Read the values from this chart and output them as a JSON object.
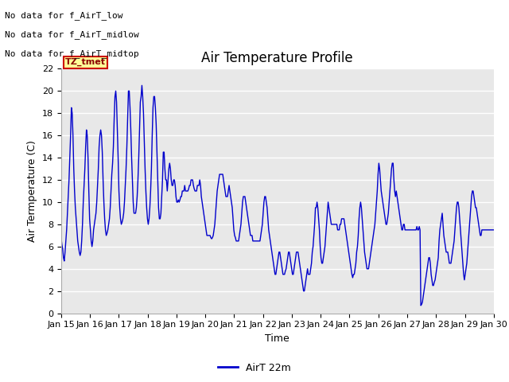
{
  "title": "Air Temperature Profile",
  "xlabel": "Time",
  "ylabel": "Air Termperature (C)",
  "ylim": [
    0,
    22
  ],
  "yticks": [
    0,
    2,
    4,
    6,
    8,
    10,
    12,
    14,
    16,
    18,
    20,
    22
  ],
  "xtick_labels": [
    "Jan 15",
    "Jan 16",
    "Jan 17",
    "Jan 18",
    "Jan 19",
    "Jan 20",
    "Jan 21",
    "Jan 22",
    "Jan 23",
    "Jan 24",
    "Jan 25",
    "Jan 26",
    "Jan 27",
    "Jan 28",
    "Jan 29",
    "Jan 30"
  ],
  "line_color": "#0000cc",
  "legend_label": "AirT 22m",
  "bg_color": "#ffffff",
  "plot_bg_color": "#e8e8e8",
  "grid_color": "#ffffff",
  "annotations": [
    "No data for f_AirT_low",
    "No data for f_AirT_midlow",
    "No data for f_AirT_midtop"
  ],
  "tz_label": "TZ_tmet",
  "title_fontsize": 12,
  "axis_fontsize": 9,
  "tick_fontsize": 8,
  "temp_data": [
    6.8,
    6.2,
    5.8,
    5.0,
    4.7,
    5.5,
    6.5,
    7.5,
    9.0,
    10.5,
    12.0,
    14.0,
    16.0,
    18.5,
    18.0,
    16.0,
    13.0,
    11.0,
    9.5,
    8.5,
    7.5,
    6.5,
    6.0,
    5.5,
    5.2,
    5.5,
    6.5,
    8.0,
    10.0,
    11.5,
    13.0,
    15.0,
    16.5,
    16.0,
    14.0,
    11.0,
    8.5,
    7.5,
    6.5,
    6.0,
    6.5,
    7.5,
    8.0,
    8.5,
    9.0,
    10.0,
    11.5,
    13.0,
    15.0,
    16.0,
    16.5,
    16.0,
    14.5,
    12.0,
    10.0,
    8.5,
    7.5,
    7.0,
    7.2,
    7.5,
    8.0,
    8.5,
    9.5,
    11.0,
    12.5,
    13.5,
    15.0,
    17.5,
    19.5,
    20.0,
    19.0,
    16.5,
    14.0,
    11.0,
    9.5,
    8.5,
    8.0,
    8.2,
    8.5,
    9.0,
    10.0,
    11.5,
    13.0,
    15.0,
    17.5,
    20.0,
    20.0,
    18.5,
    16.5,
    14.0,
    12.0,
    10.0,
    9.0,
    9.0,
    9.0,
    9.5,
    10.5,
    12.0,
    14.0,
    16.5,
    19.0,
    19.5,
    20.5,
    19.5,
    18.0,
    15.5,
    13.0,
    11.0,
    9.5,
    8.5,
    8.0,
    8.5,
    9.5,
    11.0,
    13.0,
    16.0,
    18.5,
    19.5,
    19.5,
    18.5,
    17.0,
    14.5,
    12.0,
    9.5,
    8.5,
    8.5,
    9.0,
    10.5,
    12.0,
    14.5,
    14.5,
    13.0,
    12.0,
    12.0,
    11.0,
    12.0,
    13.0,
    13.5,
    13.0,
    12.0,
    11.5,
    11.5,
    12.0,
    12.0,
    11.5,
    10.5,
    10.0,
    10.0,
    10.2,
    10.0,
    10.2,
    10.5,
    10.5,
    11.0,
    11.0,
    11.0,
    11.5,
    11.0,
    11.0,
    11.0,
    11.0,
    11.2,
    11.5,
    11.5,
    12.0,
    12.0,
    12.0,
    11.5,
    11.2,
    11.0,
    11.0,
    11.0,
    11.5,
    11.5,
    11.5,
    12.0,
    11.5,
    10.5,
    10.0,
    9.5,
    9.0,
    8.5,
    8.0,
    7.5,
    7.0,
    7.0,
    7.0,
    7.0,
    7.0,
    6.8,
    6.7,
    6.8,
    7.0,
    7.5,
    8.0,
    9.0,
    10.0,
    11.0,
    11.5,
    12.0,
    12.5,
    12.5,
    12.5,
    12.5,
    12.5,
    12.0,
    11.5,
    11.0,
    10.5,
    10.5,
    10.5,
    11.0,
    11.5,
    11.0,
    10.5,
    10.0,
    9.5,
    8.5,
    7.5,
    7.0,
    6.8,
    6.5,
    6.5,
    6.5,
    6.5,
    7.0,
    7.5,
    8.0,
    9.0,
    10.0,
    10.5,
    10.5,
    10.5,
    10.0,
    9.5,
    9.0,
    8.5,
    8.0,
    7.5,
    7.0,
    7.0,
    7.0,
    6.5,
    6.5,
    6.5,
    6.5,
    6.5,
    6.5,
    6.5,
    6.5,
    6.5,
    6.5,
    7.0,
    7.5,
    8.0,
    9.0,
    10.0,
    10.5,
    10.5,
    10.0,
    9.5,
    8.5,
    7.5,
    7.0,
    6.5,
    6.0,
    5.5,
    5.0,
    4.5,
    4.0,
    3.5,
    3.5,
    4.0,
    4.5,
    5.0,
    5.5,
    5.5,
    5.0,
    4.5,
    4.0,
    3.5,
    3.5,
    3.5,
    3.8,
    4.0,
    4.5,
    5.0,
    5.5,
    5.5,
    5.0,
    4.5,
    4.0,
    3.5,
    3.5,
    4.0,
    4.5,
    5.0,
    5.5,
    5.5,
    5.5,
    5.0,
    4.5,
    4.0,
    3.5,
    3.0,
    2.5,
    2.0,
    2.0,
    2.5,
    3.0,
    3.5,
    4.0,
    3.5,
    3.5,
    3.5,
    4.0,
    4.5,
    5.5,
    6.0,
    7.0,
    8.0,
    9.5,
    9.5,
    10.0,
    9.5,
    8.5,
    7.5,
    6.0,
    5.0,
    4.5,
    4.5,
    5.0,
    5.5,
    6.0,
    7.0,
    8.0,
    9.0,
    10.0,
    9.5,
    9.0,
    8.5,
    8.0,
    8.0,
    8.0,
    8.0,
    8.0,
    8.0,
    8.0,
    8.0,
    7.5,
    7.5,
    7.5,
    8.0,
    8.0,
    8.5,
    8.5,
    8.5,
    8.5,
    8.0,
    7.5,
    7.0,
    6.5,
    6.0,
    5.5,
    5.0,
    4.5,
    4.0,
    3.5,
    3.2,
    3.5,
    3.5,
    4.0,
    4.5,
    5.5,
    6.0,
    7.0,
    8.5,
    9.5,
    10.0,
    9.5,
    8.5,
    7.5,
    6.5,
    5.5,
    5.0,
    4.5,
    4.0,
    4.0,
    4.0,
    4.5,
    5.0,
    5.5,
    6.0,
    6.5,
    7.0,
    7.5,
    8.0,
    9.0,
    10.0,
    11.0,
    12.5,
    13.5,
    13.0,
    12.0,
    11.0,
    10.5,
    10.0,
    9.5,
    9.0,
    8.5,
    8.0,
    8.0,
    8.5,
    9.0,
    10.0,
    11.0,
    12.0,
    13.0,
    13.5,
    13.5,
    12.0,
    11.0,
    10.5,
    11.0,
    10.5,
    10.0,
    9.5,
    9.0,
    8.5,
    8.0,
    7.5,
    7.5,
    8.0,
    8.0,
    7.5,
    7.5,
    7.5,
    7.5,
    7.5,
    7.5,
    7.5,
    7.5,
    7.5,
    7.5,
    7.5,
    7.5,
    7.5,
    7.5,
    7.5,
    7.8,
    7.5,
    7.5,
    7.8,
    7.5,
    0.7,
    0.8,
    1.0,
    1.5,
    2.0,
    2.5,
    3.0,
    3.5,
    4.0,
    4.5,
    5.0,
    5.0,
    4.5,
    3.5,
    3.0,
    2.5,
    2.5,
    2.8,
    3.0,
    3.5,
    4.0,
    4.5,
    5.0,
    6.5,
    7.5,
    8.0,
    8.5,
    9.0,
    8.0,
    7.0,
    6.5,
    6.0,
    5.5,
    5.5,
    5.5,
    5.0,
    4.5,
    4.5,
    4.5,
    5.0,
    5.5,
    6.0,
    6.5,
    7.5,
    8.5,
    9.5,
    10.0,
    10.0,
    9.5,
    8.5,
    7.5,
    6.5,
    5.5,
    4.5,
    3.5,
    3.0,
    3.5,
    4.0,
    4.5,
    5.5,
    6.5,
    7.5,
    8.5,
    9.5,
    10.5,
    11.0,
    11.0,
    10.5,
    10.0,
    9.5,
    9.5,
    9.0,
    8.5,
    8.0,
    7.5,
    7.0,
    7.0,
    7.5,
    7.5,
    7.5,
    7.5,
    7.5,
    7.5,
    7.5,
    7.5,
    7.5,
    7.5,
    7.5,
    7.5,
    7.5,
    7.5,
    7.5,
    7.5
  ]
}
